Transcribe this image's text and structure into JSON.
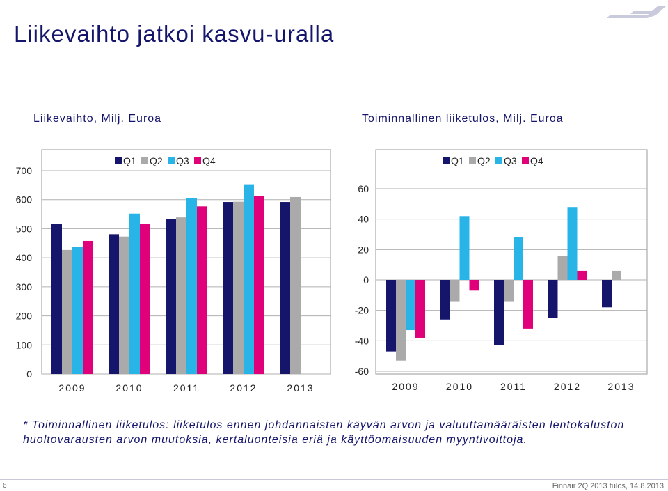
{
  "title": "Liikevaihto jatkoi kasvu-uralla",
  "colors": {
    "Q1": "#14156b",
    "Q2": "#aaaaaa",
    "Q3": "#29b4e8",
    "Q4": "#e0007a",
    "text": "#14156b"
  },
  "chart_data": [
    {
      "type": "bar",
      "title": "Liikevaihto, Milj. Euroa",
      "categories": [
        "2009",
        "2010",
        "2011",
        "2012",
        "2013"
      ],
      "series": [
        {
          "name": "Q1",
          "values": [
            516,
            481,
            533,
            592,
            592
          ]
        },
        {
          "name": "Q2",
          "values": [
            427,
            473,
            539,
            593,
            609
          ]
        },
        {
          "name": "Q3",
          "values": [
            437,
            552,
            606,
            653,
            null
          ]
        },
        {
          "name": "Q4",
          "values": [
            458,
            517,
            577,
            612,
            null
          ]
        }
      ],
      "ylim": [
        0,
        700
      ],
      "yticks": [
        0,
        100,
        200,
        300,
        400,
        500,
        600,
        700
      ],
      "legend": "top",
      "grid": false
    },
    {
      "type": "bar",
      "title": "Toiminnallinen liiketulos, Milj. Euroa",
      "categories": [
        "2009",
        "2010",
        "2011",
        "2012",
        "2013"
      ],
      "series": [
        {
          "name": "Q1",
          "values": [
            -47,
            -26,
            -43,
            -25,
            -18
          ]
        },
        {
          "name": "Q2",
          "values": [
            -53,
            -14,
            -14,
            16,
            6
          ]
        },
        {
          "name": "Q3",
          "values": [
            -33,
            42,
            28,
            48,
            null
          ]
        },
        {
          "name": "Q4",
          "values": [
            -38,
            -7,
            -32,
            6,
            null
          ]
        }
      ],
      "ylim": [
        -60,
        60
      ],
      "yticks": [
        -60,
        -40,
        -20,
        0,
        20,
        40,
        60
      ],
      "legend": "top",
      "grid": false
    }
  ],
  "footnote": "* Toiminnallinen liiketulos: liiketulos ennen johdannaisten käyvän arvon ja valuuttamääräisten lentokaluston huoltovarausten arvon muutoksia, kertaluonteisia eriä ja käyttöomaisuuden myyntivoittoja.",
  "footer": {
    "page": "6",
    "text": "Finnair 2Q 2013 tulos, 14.8.2013"
  }
}
